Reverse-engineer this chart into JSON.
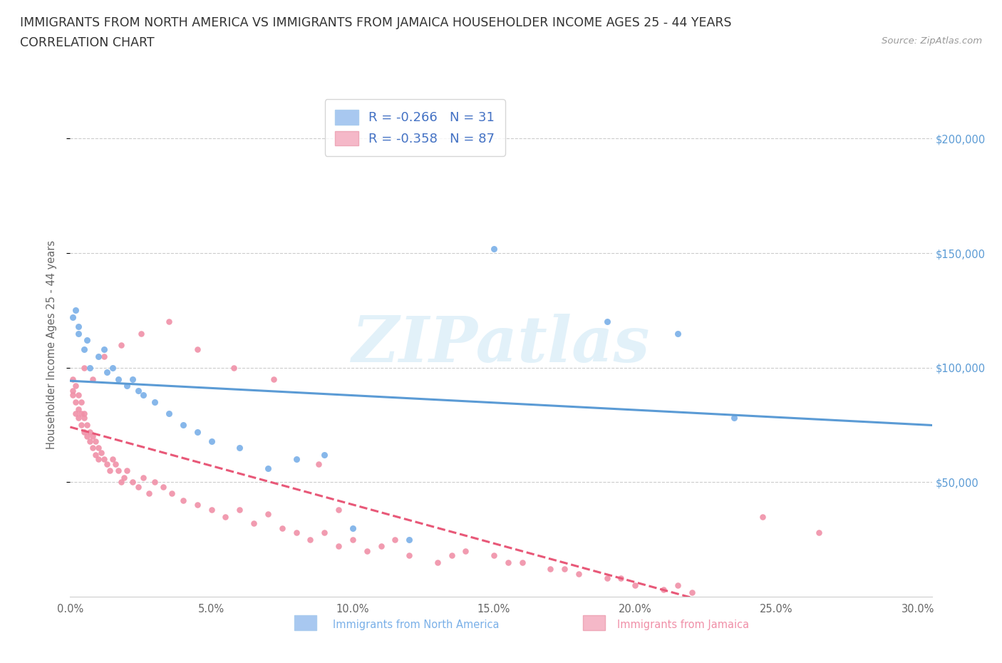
{
  "title_line1": "IMMIGRANTS FROM NORTH AMERICA VS IMMIGRANTS FROM JAMAICA HOUSEHOLDER INCOME AGES 25 - 44 YEARS",
  "title_line2": "CORRELATION CHART",
  "source_text": "Source: ZipAtlas.com",
  "ylabel": "Householder Income Ages 25 - 44 years",
  "watermark": "ZIPatlas",
  "series1": {
    "label": "Immigrants from North America",
    "patch_color": "#a8c8f0",
    "scatter_color": "#7ab0e8",
    "R": -0.266,
    "N": 31,
    "line_color": "#5b9bd5",
    "x": [
      0.001,
      0.002,
      0.003,
      0.003,
      0.005,
      0.006,
      0.007,
      0.01,
      0.012,
      0.013,
      0.015,
      0.017,
      0.02,
      0.022,
      0.024,
      0.026,
      0.03,
      0.035,
      0.04,
      0.045,
      0.05,
      0.06,
      0.07,
      0.08,
      0.09,
      0.1,
      0.12,
      0.15,
      0.19,
      0.215,
      0.235
    ],
    "y": [
      122000,
      125000,
      118000,
      115000,
      108000,
      112000,
      100000,
      105000,
      108000,
      98000,
      100000,
      95000,
      92000,
      95000,
      90000,
      88000,
      85000,
      80000,
      75000,
      72000,
      68000,
      65000,
      56000,
      60000,
      62000,
      30000,
      25000,
      152000,
      120000,
      115000,
      78000
    ]
  },
  "series2": {
    "label": "Immigrants from Jamaica",
    "patch_color": "#f5b8c8",
    "scatter_color": "#f090a8",
    "R": -0.358,
    "N": 87,
    "line_color": "#e85878",
    "x": [
      0.001,
      0.001,
      0.001,
      0.002,
      0.002,
      0.002,
      0.003,
      0.003,
      0.003,
      0.004,
      0.004,
      0.004,
      0.005,
      0.005,
      0.005,
      0.006,
      0.006,
      0.007,
      0.007,
      0.008,
      0.008,
      0.009,
      0.009,
      0.01,
      0.01,
      0.011,
      0.012,
      0.013,
      0.014,
      0.015,
      0.016,
      0.017,
      0.018,
      0.019,
      0.02,
      0.022,
      0.024,
      0.026,
      0.028,
      0.03,
      0.033,
      0.036,
      0.04,
      0.045,
      0.05,
      0.055,
      0.06,
      0.065,
      0.07,
      0.075,
      0.08,
      0.085,
      0.09,
      0.095,
      0.1,
      0.105,
      0.11,
      0.12,
      0.13,
      0.14,
      0.15,
      0.16,
      0.17,
      0.18,
      0.19,
      0.2,
      0.21,
      0.22,
      0.005,
      0.008,
      0.012,
      0.018,
      0.025,
      0.035,
      0.045,
      0.058,
      0.072,
      0.088,
      0.095,
      0.115,
      0.135,
      0.155,
      0.175,
      0.195,
      0.215,
      0.245,
      0.265
    ],
    "y": [
      95000,
      90000,
      88000,
      92000,
      85000,
      80000,
      88000,
      82000,
      78000,
      85000,
      80000,
      75000,
      80000,
      78000,
      72000,
      75000,
      70000,
      72000,
      68000,
      70000,
      65000,
      68000,
      62000,
      65000,
      60000,
      63000,
      60000,
      58000,
      55000,
      60000,
      58000,
      55000,
      50000,
      52000,
      55000,
      50000,
      48000,
      52000,
      45000,
      50000,
      48000,
      45000,
      42000,
      40000,
      38000,
      35000,
      38000,
      32000,
      36000,
      30000,
      28000,
      25000,
      28000,
      22000,
      25000,
      20000,
      22000,
      18000,
      15000,
      20000,
      18000,
      15000,
      12000,
      10000,
      8000,
      5000,
      3000,
      2000,
      100000,
      95000,
      105000,
      110000,
      115000,
      120000,
      108000,
      100000,
      95000,
      58000,
      38000,
      25000,
      18000,
      15000,
      12000,
      8000,
      5000,
      35000,
      28000
    ]
  },
  "xlim": [
    0.0,
    0.305
  ],
  "ylim": [
    0,
    220000
  ],
  "xtick_values": [
    0.0,
    0.05,
    0.1,
    0.15,
    0.2,
    0.25,
    0.3
  ],
  "xtick_labels": [
    "0.0%",
    "5.0%",
    "10.0%",
    "15.0%",
    "20.0%",
    "25.0%",
    "30.0%"
  ],
  "ytick_values": [
    50000,
    100000,
    150000,
    200000
  ],
  "ytick_labels": [
    "$50,000",
    "$100,000",
    "$150,000",
    "$200,000"
  ],
  "grid_color": "#cccccc",
  "bg_color": "#ffffff",
  "title_color": "#333333",
  "tick_color": "#666666",
  "legend_text_color": "#4472c4",
  "source_color": "#999999",
  "right_tick_color": "#5b9bd5"
}
